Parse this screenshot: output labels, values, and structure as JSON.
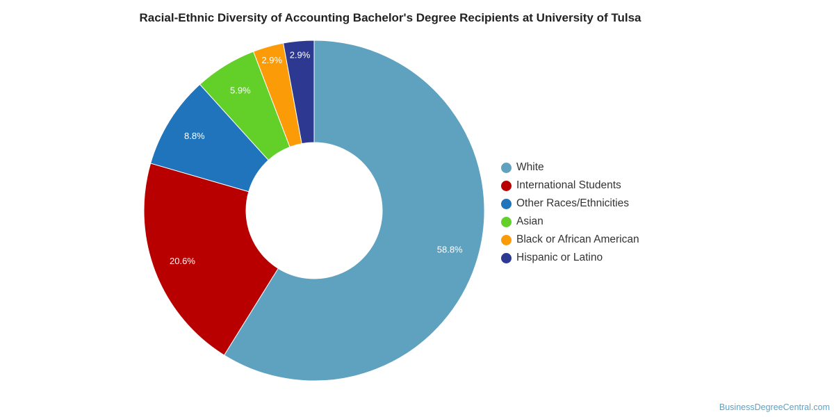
{
  "chart_data": {
    "type": "pie",
    "donut": true,
    "title": "Racial-Ethnic Diversity of Accounting Bachelor's Degree Recipients at University of Tulsa",
    "categories": [
      "White",
      "International Students",
      "Other Races/Ethnicities",
      "Asian",
      "Black or African American",
      "Hispanic or Latino"
    ],
    "values": [
      58.8,
      20.6,
      8.8,
      5.9,
      2.9,
      2.9
    ],
    "value_labels": [
      "58.8%",
      "20.6%",
      "8.8%",
      "5.9%",
      "2.9%",
      "2.9%"
    ],
    "colors": [
      "#5fa2c0",
      "#b90000",
      "#1f74bb",
      "#63cf29",
      "#fb9b07",
      "#2d3990"
    ],
    "legend_position": "right"
  },
  "source": "BusinessDegreeCentral.com"
}
